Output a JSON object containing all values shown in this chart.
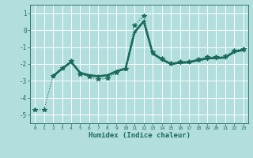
{
  "xlabel": "Humidex (Indice chaleur)",
  "bg_color": "#b2dede",
  "grid_color": "#ffffff",
  "line_color": "#1a6b5a",
  "xlim": [
    -0.5,
    23.5
  ],
  "ylim": [
    -5.5,
    1.5
  ],
  "yticks": [
    1,
    0,
    -1,
    -2,
    -3,
    -4,
    -5
  ],
  "ytick_labels": [
    "1",
    "0",
    "-1",
    "-2",
    "-3",
    "-4",
    "-5"
  ],
  "xticks": [
    0,
    1,
    2,
    3,
    4,
    5,
    6,
    7,
    8,
    9,
    10,
    11,
    12,
    13,
    14,
    15,
    16,
    17,
    18,
    19,
    20,
    21,
    22,
    23
  ],
  "series": [
    {
      "x": [
        0,
        1,
        2,
        3,
        4,
        5,
        6,
        7,
        8,
        9,
        10,
        11,
        12,
        13,
        14,
        15,
        16,
        17,
        18,
        19,
        20,
        21,
        22,
        23
      ],
      "y": [
        -4.7,
        -4.7,
        -2.7,
        -2.25,
        -1.8,
        -2.6,
        -2.75,
        -2.9,
        -2.85,
        -2.5,
        -2.3,
        0.3,
        0.85,
        -1.3,
        -1.65,
        -1.95,
        -1.85,
        -1.85,
        -1.7,
        -1.6,
        -1.58,
        -1.55,
        -1.2,
        -1.1
      ],
      "style": "dotted",
      "marker": "*",
      "markersize": 4,
      "linewidth": 0.8
    },
    {
      "x": [
        2,
        3,
        4,
        5,
        6,
        7,
        8,
        9,
        10,
        11,
        12,
        13,
        14,
        15,
        16,
        17,
        18,
        19,
        20,
        21,
        22,
        23
      ],
      "y": [
        -2.7,
        -2.25,
        -1.85,
        -2.5,
        -2.65,
        -2.7,
        -2.65,
        -2.4,
        -2.25,
        -0.1,
        0.55,
        -1.35,
        -1.7,
        -1.98,
        -1.9,
        -1.88,
        -1.75,
        -1.65,
        -1.63,
        -1.6,
        -1.25,
        -1.15
      ],
      "style": "solid",
      "marker": "+",
      "markersize": 3,
      "linewidth": 1.0
    },
    {
      "x": [
        2,
        3,
        4,
        5,
        6,
        7,
        8,
        9,
        10,
        11,
        12,
        13,
        14,
        15,
        16,
        17,
        18,
        19,
        20,
        21,
        22,
        23
      ],
      "y": [
        -2.72,
        -2.27,
        -1.88,
        -2.52,
        -2.67,
        -2.72,
        -2.67,
        -2.43,
        -2.27,
        -0.12,
        0.52,
        -1.38,
        -1.73,
        -2.0,
        -1.92,
        -1.9,
        -1.77,
        -1.67,
        -1.65,
        -1.62,
        -1.27,
        -1.17
      ],
      "style": "solid",
      "marker": null,
      "markersize": 0,
      "linewidth": 1.8
    },
    {
      "x": [
        2,
        3,
        4,
        5,
        6,
        7,
        8,
        9,
        10,
        11,
        12,
        13,
        14,
        15,
        16,
        17,
        18,
        19,
        20,
        21,
        22,
        23
      ],
      "y": [
        -2.75,
        -2.3,
        -1.9,
        -2.55,
        -2.7,
        -2.75,
        -2.7,
        -2.45,
        -2.3,
        -0.15,
        0.5,
        -1.4,
        -1.75,
        -2.02,
        -1.95,
        -1.92,
        -1.8,
        -1.7,
        -1.67,
        -1.64,
        -1.3,
        -1.2
      ],
      "style": "solid",
      "marker": "+",
      "markersize": 3,
      "linewidth": 1.0
    }
  ]
}
